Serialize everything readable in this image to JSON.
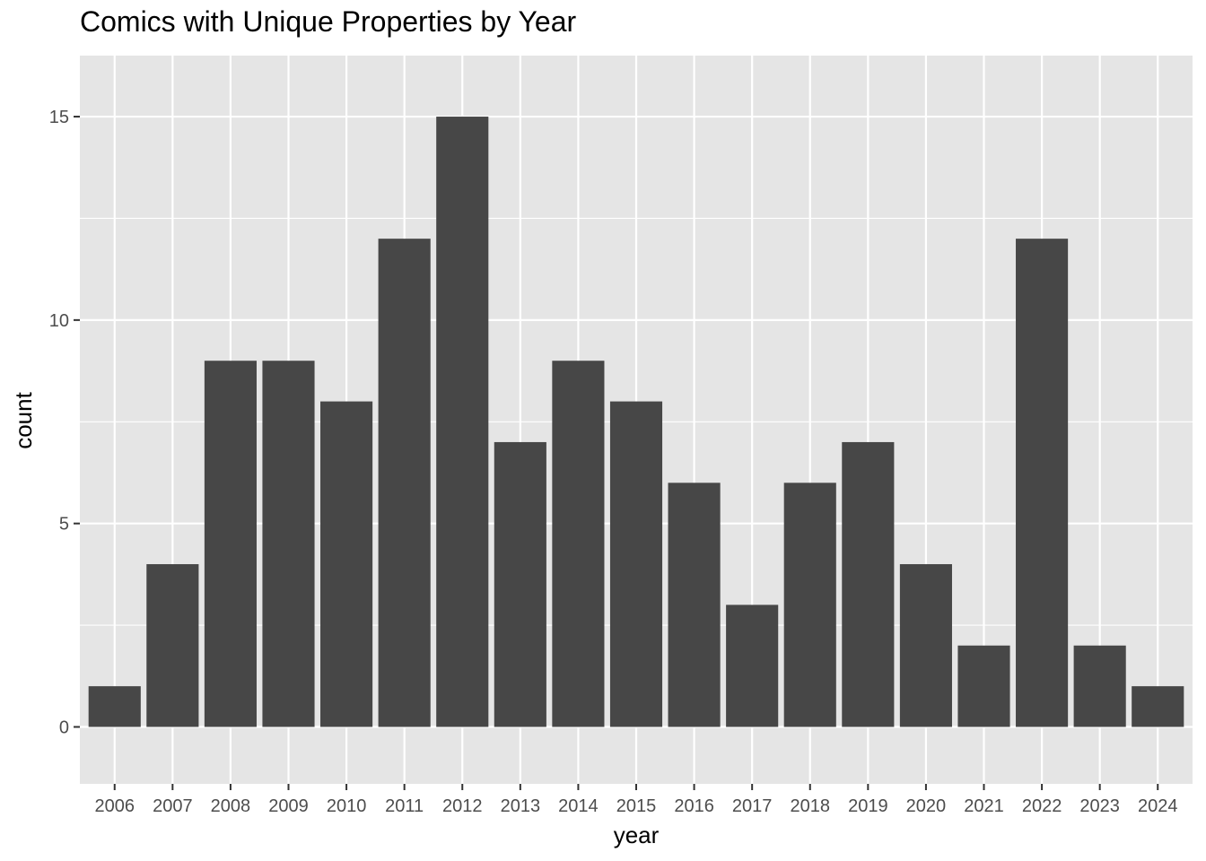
{
  "chart_data": {
    "type": "bar",
    "title": "Comics with Unique Properties by Year",
    "xlabel": "year",
    "ylabel": "count",
    "categories": [
      "2006",
      "2007",
      "2008",
      "2009",
      "2010",
      "2011",
      "2012",
      "2013",
      "2014",
      "2015",
      "2016",
      "2017",
      "2018",
      "2019",
      "2020",
      "2021",
      "2022",
      "2023",
      "2024"
    ],
    "values": [
      1,
      4,
      9,
      9,
      8,
      12,
      15,
      7,
      9,
      8,
      6,
      3,
      6,
      7,
      4,
      2,
      12,
      2,
      1
    ],
    "ylim": [
      -1.4,
      16.5
    ],
    "yticks": [
      0,
      5,
      10,
      15
    ],
    "grid": true,
    "colors": {
      "bar": "#474747",
      "panel": "#e5e5e5",
      "grid_major": "#ffffff",
      "tick_text": "#4d4d4d"
    }
  }
}
